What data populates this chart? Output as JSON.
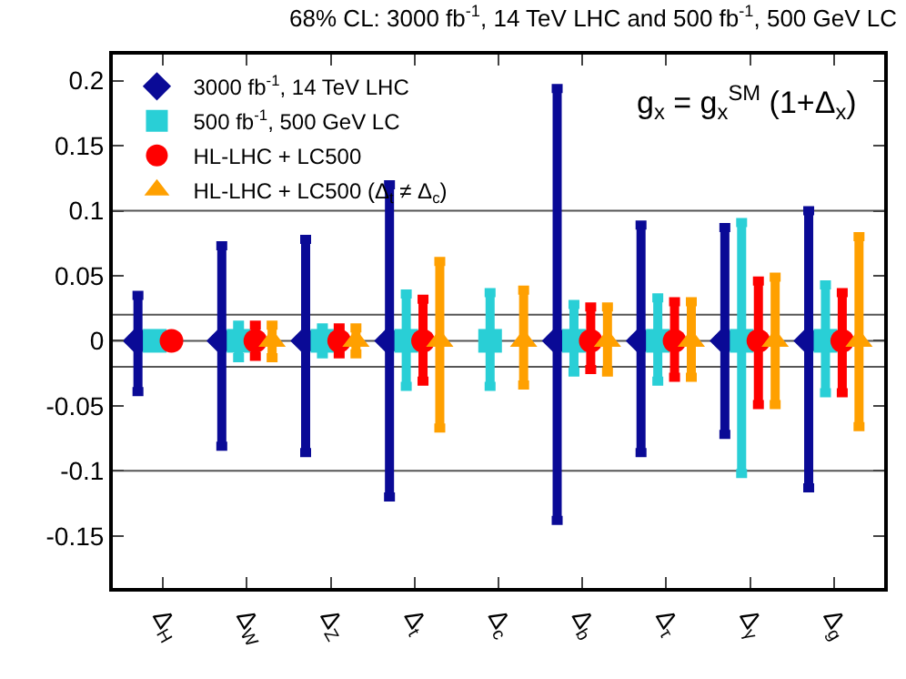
{
  "chart_data": {
    "type": "scatter",
    "title": "68% CL: 3000 fb$^{-1}$, 14 TeV LHC and 500 fb$^{-1}$, 500 GeV LC",
    "categories": [
      "Δ$_{H}$",
      "Δ$_{W}$",
      "Δ$_{Z}$",
      "Δ$_{t}$",
      "Δ$_{c}$",
      "Δ$_{b}$",
      "Δ$_{τ}$",
      "Δ$_{γ}$",
      "Δ$_{g}$"
    ],
    "series": [
      {
        "name": "3000 fb$^{-1}$, 14 TeV LHC",
        "color": "#0a0a96",
        "marker": "diamond",
        "values": [
          0,
          0,
          0,
          0,
          null,
          0,
          0,
          0,
          0
        ],
        "errors": [
          [
            -0.039,
            0.035
          ],
          [
            -0.081,
            0.073
          ],
          [
            -0.086,
            0.078
          ],
          [
            -0.12,
            0.12
          ],
          null,
          [
            -0.138,
            0.194
          ],
          [
            -0.086,
            0.089
          ],
          [
            -0.072,
            0.087
          ],
          [
            -0.113,
            0.1
          ]
        ]
      },
      {
        "name": "500 fb$^{-1}$, 500 GeV LC",
        "color": "#29cfd6",
        "marker": "square",
        "values": [
          0,
          0,
          0,
          0,
          0,
          0,
          0,
          0,
          0
        ],
        "errors": [
          null,
          [
            -0.013,
            0.012
          ],
          [
            -0.01,
            0.01
          ],
          [
            -0.035,
            0.036
          ],
          [
            -0.035,
            0.037
          ],
          [
            -0.024,
            0.028
          ],
          [
            -0.031,
            0.033
          ],
          [
            -0.102,
            0.091
          ],
          [
            -0.04,
            0.043
          ]
        ]
      },
      {
        "name": "HL-LHC + LC500",
        "color": "#ff0000",
        "marker": "circle",
        "values": [
          0,
          0,
          0,
          0,
          null,
          0,
          0,
          0,
          0
        ],
        "errors": [
          null,
          [
            -0.012,
            0.012
          ],
          [
            -0.01,
            0.01
          ],
          [
            -0.031,
            0.032
          ],
          null,
          [
            -0.022,
            0.026
          ],
          [
            -0.028,
            0.03
          ],
          [
            -0.049,
            0.046
          ],
          [
            -0.04,
            0.037
          ]
        ]
      },
      {
        "name": "HL-LHC + LC500 (Δ$_{t}$ ≠ Δ$_{c}$)",
        "color": "#ffa000",
        "marker": "triangle",
        "values": [
          null,
          0,
          0,
          0,
          0,
          0,
          0,
          0,
          0
        ],
        "errors": [
          null,
          [
            -0.013,
            0.012
          ],
          [
            -0.01,
            0.01
          ],
          [
            -0.067,
            0.061
          ],
          [
            -0.034,
            0.039
          ],
          [
            -0.024,
            0.026
          ],
          [
            -0.028,
            0.03
          ],
          [
            -0.049,
            0.049
          ],
          [
            -0.066,
            0.08
          ]
        ]
      }
    ],
    "ylim": [
      -0.19,
      0.22
    ],
    "yticks": [
      -0.15,
      -0.1,
      -0.05,
      0,
      0.05,
      0.1,
      0.15,
      0.2
    ],
    "ref_lines": [
      {
        "axis": "y",
        "value": 0.1,
        "color": "#555555"
      },
      {
        "axis": "y",
        "value": 0.02,
        "color": "#555555"
      },
      {
        "axis": "y",
        "value": 0,
        "color": "#555555"
      },
      {
        "axis": "y",
        "value": -0.02,
        "color": "#555555"
      },
      {
        "axis": "y",
        "value": -0.1,
        "color": "#555555"
      }
    ],
    "annotations": [
      "g$_{x}$ = g$_{x}$$^{SM}$ (1+Δ$_{x}$)"
    ],
    "legend": "top left",
    "grid": false
  }
}
